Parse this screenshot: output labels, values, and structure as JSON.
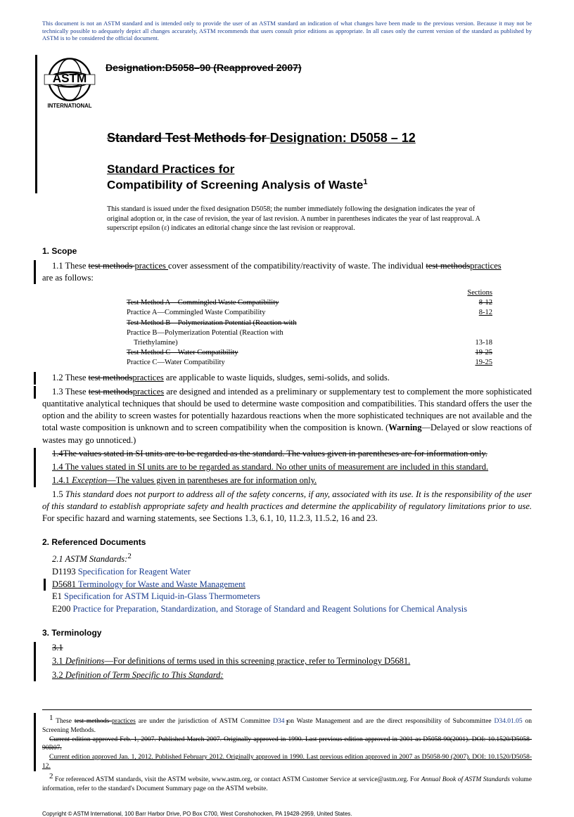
{
  "notice": "This document is not an ASTM standard and is intended only to provide the user of an ASTM standard an indication of what changes have been made to the previous version. Because it may not be technically possible to adequately depict all changes accurately, ASTM recommends that users consult prior editions as appropriate. In all cases only the current version of the standard as published by ASTM is to be considered the official document.",
  "old_designation": "Designation:D5058–90 (Reapproved 2007)",
  "title_line_strike": "Standard Test Methods for ",
  "title_line_new": "Designation: D5058 – 12",
  "title2_line1": "Standard Practices for",
  "title2_line2": "Compatibility of Screening Analysis of Waste",
  "issued_note": "This standard is issued under the fixed designation D5058; the number immediately following the designation indicates the year of original adoption or, in the case of revision, the year of last revision. A number in parentheses indicates the year of last reapproval. A superscript epsilon (ε) indicates an editorial change since the last revision or reapproval.",
  "sec1_head": "1. Scope",
  "p11a": "1.1 These ",
  "p11_strike": "test methods ",
  "p11_u": "practices ",
  "p11b": "cover assessment of the compatibility/reactivity of waste. The individual ",
  "p11_strike2": "test methods",
  "p11_u2": "practices",
  "p11c": " are as follows:",
  "sections_header": "Sections",
  "rows": [
    {
      "label": "Test Method A—Commingled Waste Compatibility",
      "strike": true,
      "val": "  8-12",
      "vstrike": true
    },
    {
      "label": "Practice A—Commingled Waste Compatibility",
      "val": "8-12",
      "uline": true
    },
    {
      "label": "Test Method B—Polymerization Potential (Reaction with",
      "strike": true,
      "val": ""
    },
    {
      "label": "Practice B—Polymerization Potential (Reaction with",
      "val": ""
    },
    {
      "label": "Triethylamine)",
      "indent": true,
      "val": "13-18"
    },
    {
      "label": "Test Method C—Water Compatibility",
      "strike": true,
      "val": "19-25",
      "vstrike": true
    },
    {
      "label": "Practice C—Water Compatibility",
      "val": "19-25",
      "uline": true
    }
  ],
  "p12": "1.2 These test methodspractices are applicable to waste liquids, sludges, semi-solids, and solids.",
  "p13": "1.3 These test methodspractices are designed and intended as a preliminary or supplementary test to complement the more sophisticated quantitative analytical techniques that should be used to determine waste composition and compatibilities. This standard offers the user the option and the ability to screen wastes for potentially hazardous reactions when the more sophisticated techniques are not available and the total waste composition is unknown and to screen compatibility when the composition is known. (Warning—Delayed or slow reactions of wastes may go unnoticed.)",
  "p14old": "1.4The values stated in SI units are to be regarded as the standard. The values given in parentheses are for information only.",
  "p14new": "1.4 The values stated in SI units are to be regarded as standard. No other units of measurement are included in this standard.",
  "p141": "1.4.1 Exception—The values given in parentheses are for information only.",
  "p15a": "1.5 ",
  "p15i": "This standard does not purport to address all of the safety concerns, if any, associated with its use. It is the responsibility of the user of this standard to establish appropriate safety and health practices and determine the applicability of regulatory limitations prior to use.",
  "p15b": " For specific hazard and warning statements, see Sections 1.3, 6.1, 10, 11.2.3, 11.5.2, 16 and 23.",
  "sec2_head": "2. Referenced Documents",
  "sec21": "2.1 ASTM Standards:",
  "ref1a": "D1193  ",
  "ref1b": "Specification for Reagent Water",
  "ref2a": "D5681  ",
  "ref2b": "Terminology for Waste and Waste Management",
  "ref3a": "E1  ",
  "ref3b": "Specification for ASTM Liquid-in-Glass Thermometers",
  "ref4a": "E200  ",
  "ref4b": "Practice for Preparation, Standardization, and Storage of Standard and Reagent Solutions for Chemical Analysis",
  "sec3_head": "3. Terminology",
  "p31old": "3.1",
  "p31new": "3.1 Definitions—For definitions of terms used in this screening practice, refer to Terminology D5681.",
  "p32": "3.2 Definition of Term Specific to This Standard:",
  "fn1": " These test methods practices are under the jurisdiction of ASTM Committee D34 on Waste Management and are the direct responsibility of Subcommittee D34.01.05 on Screening Methods.",
  "fn1b": "Current edition approved Feb. 1, 2007. Published March 2007. Originally approved in 1990. Last previous edition approved in 2001 as D5058-90(2001). DOI: 10.1520/D5058-90R07.",
  "fn1c": "Current edition approved Jan. 1, 2012. Published February 2012. Originally approved in 1990. Last previous edition approved in 2007 as D5058-90 (2007). DOI: 10.1520/D5058-12.",
  "fn2": " For referenced ASTM standards, visit the ASTM website, www.astm.org, or contact ASTM Customer Service at service@astm.org. For Annual Book of ASTM Standards volume information, refer to the standard's Document Summary page on the ASTM website.",
  "copyright": "Copyright © ASTM International, 100 Barr Harbor Drive, PO Box C700, West Conshohocken, PA 19428-2959, United States.",
  "page": "1",
  "colors": {
    "link": "#1a3d8f",
    "text": "#000000"
  }
}
